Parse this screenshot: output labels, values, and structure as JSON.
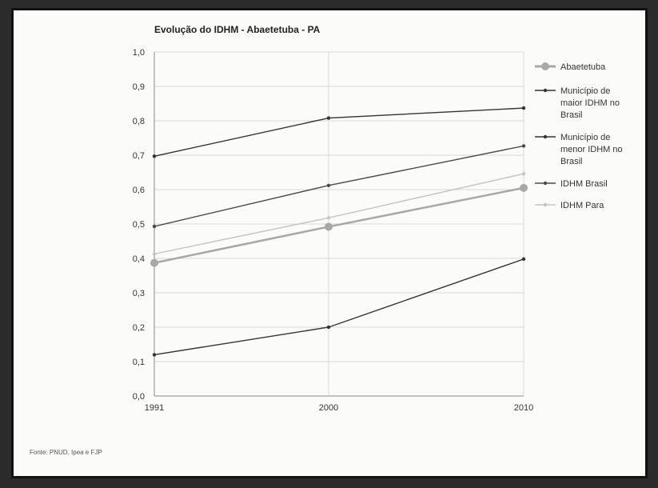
{
  "chart_data": {
    "type": "line",
    "title": "Evolução do IDHM - Abaetetuba - PA",
    "x": [
      "1991",
      "2000",
      "2010"
    ],
    "y_ticks": [
      "0,0",
      "0,1",
      "0,2",
      "0,3",
      "0,4",
      "0,5",
      "0,6",
      "0,7",
      "0,8",
      "0,9",
      "1,0"
    ],
    "ylim": [
      0,
      1
    ],
    "grid": true,
    "legend_position": "right",
    "series": [
      {
        "name": "Abaetetuba",
        "values": [
          0.387,
          0.492,
          0.605
        ],
        "color": "#a8a8a8",
        "marker": "circle-large"
      },
      {
        "name": "Município de maior IDHM no Brasil",
        "values": [
          0.697,
          0.808,
          0.837
        ],
        "color": "#333333",
        "marker": "dot"
      },
      {
        "name": "Município de menor IDHM no Brasil",
        "values": [
          0.12,
          0.2,
          0.398
        ],
        "color": "#333333",
        "marker": "dot"
      },
      {
        "name": "IDHM Brasil",
        "values": [
          0.493,
          0.612,
          0.727
        ],
        "color": "#4a4a4a",
        "marker": "dot"
      },
      {
        "name": "IDHM Para",
        "values": [
          0.413,
          0.518,
          0.646
        ],
        "color": "#c4c4c4",
        "marker": "dot"
      }
    ],
    "legend": [
      {
        "lines": [
          "Abaetetuba"
        ]
      },
      {
        "lines": [
          "Município de",
          "maior IDHM no",
          "Brasil"
        ]
      },
      {
        "lines": [
          "Município de",
          "menor IDHM no",
          "Brasil"
        ]
      },
      {
        "lines": [
          "IDHM Brasil"
        ]
      },
      {
        "lines": [
          "IDHM Para"
        ]
      }
    ]
  },
  "footer": {
    "source": "Fonte: PNUD, Ipea e FJP"
  }
}
